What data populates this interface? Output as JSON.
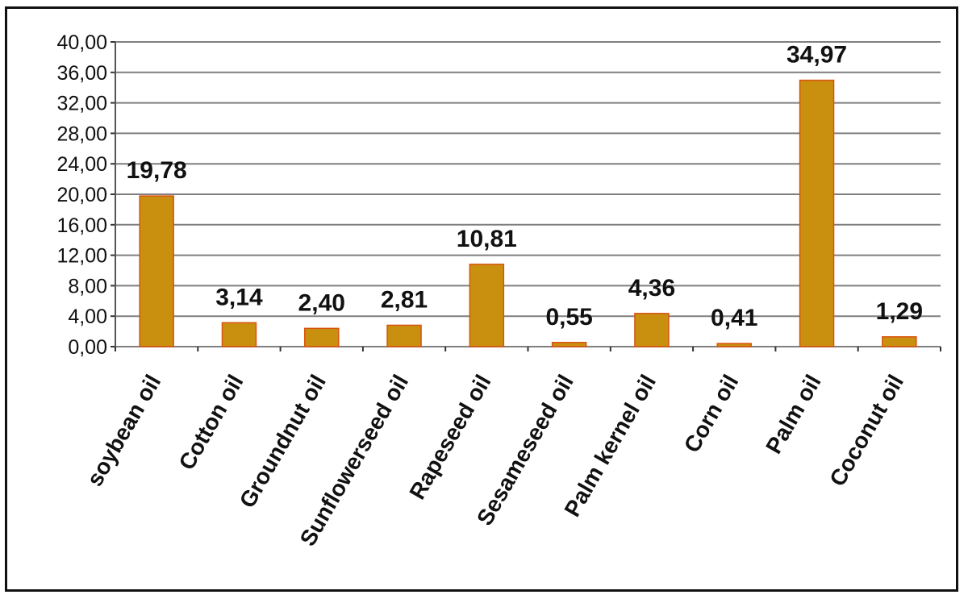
{
  "chart_data": {
    "type": "bar",
    "categories": [
      "soybean oil",
      "Cotton oil",
      "Groundnut oil",
      "Sunflowerseed oil",
      "Rapeseed oil",
      "Sesameseed oil",
      "Palm kernel oil",
      "Corn oil",
      "Palm oil",
      "Coconut oil"
    ],
    "values": [
      19.78,
      3.14,
      2.4,
      2.81,
      10.81,
      0.55,
      4.36,
      0.41,
      34.97,
      1.29
    ],
    "value_labels": [
      "19,78",
      "3,14",
      "2,40",
      "2,81",
      "10,81",
      "0,55",
      "4,36",
      "0,41",
      "34,97",
      "1,29"
    ],
    "yticks": [
      "0,00",
      "4,00",
      "8,00",
      "12,00",
      "16,00",
      "20,00",
      "24,00",
      "28,00",
      "32,00",
      "36,00",
      "40,00"
    ],
    "ylim": [
      0,
      40
    ],
    "grid": true,
    "legend": "none",
    "colors": {
      "bar_fill": "#C8900E",
      "bar_stroke": "#D9530F",
      "grid": "#7f7f7f"
    }
  }
}
